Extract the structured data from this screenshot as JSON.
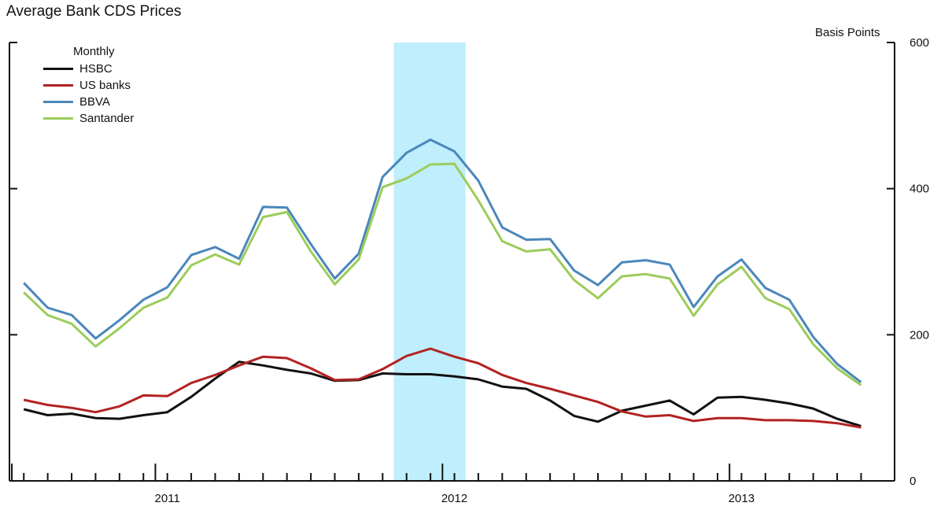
{
  "title": "Average Bank CDS Prices",
  "unit_label": "Basis Points",
  "legend_title": "Monthly",
  "shade_color": "#bfeefc",
  "chart_data": {
    "type": "line",
    "title": "Average Bank CDS Prices",
    "ylabel": "Basis Points",
    "ylim": [
      0,
      600
    ],
    "yticks": [
      0,
      200,
      400,
      600
    ],
    "x_start": "2010-07",
    "x_range_months": [
      -0.6,
      36.4
    ],
    "year_labels": [
      {
        "label": "2011",
        "center_month": 6
      },
      {
        "label": "2012",
        "center_month": 18
      },
      {
        "label": "2013",
        "center_month": 30
      }
    ],
    "shaded_period": [
      "2011-10-15",
      "2012-01-15"
    ],
    "legend_position": "top-left",
    "grid": false,
    "series": [
      {
        "name": "HSBC",
        "color": "#111111",
        "values": [
          98,
          90,
          92,
          86,
          85,
          90,
          94,
          115,
          140,
          163,
          158,
          152,
          147,
          137,
          138,
          147,
          146,
          146,
          143,
          139,
          129,
          126,
          110,
          89,
          81,
          96,
          103,
          110,
          91,
          114,
          115,
          111,
          106,
          99,
          85,
          75
        ]
      },
      {
        "name": "US banks",
        "color": "#b22222",
        "values": [
          111,
          104,
          100,
          94,
          102,
          117,
          116,
          134,
          145,
          158,
          170,
          168,
          154,
          138,
          139,
          153,
          171,
          181,
          170,
          161,
          145,
          134,
          126,
          117,
          108,
          95,
          88,
          90,
          82,
          86,
          86,
          83,
          83,
          82,
          79,
          73
        ]
      },
      {
        "name": "BBVA",
        "color": "#4a87bb",
        "values": [
          271,
          237,
          227,
          195,
          220,
          248,
          265,
          309,
          320,
          304,
          375,
          374,
          324,
          277,
          311,
          416,
          449,
          467,
          451,
          411,
          347,
          330,
          331,
          288,
          268,
          299,
          302,
          296,
          238,
          280,
          303,
          264,
          248,
          197,
          160,
          135
        ]
      },
      {
        "name": "Santander",
        "color": "#9ccc5a",
        "values": [
          258,
          227,
          215,
          184,
          209,
          237,
          251,
          295,
          310,
          296,
          361,
          368,
          314,
          269,
          303,
          402,
          414,
          433,
          434,
          384,
          328,
          314,
          317,
          275,
          250,
          280,
          283,
          277,
          226,
          269,
          293,
          250,
          235,
          187,
          154,
          131
        ]
      }
    ]
  }
}
